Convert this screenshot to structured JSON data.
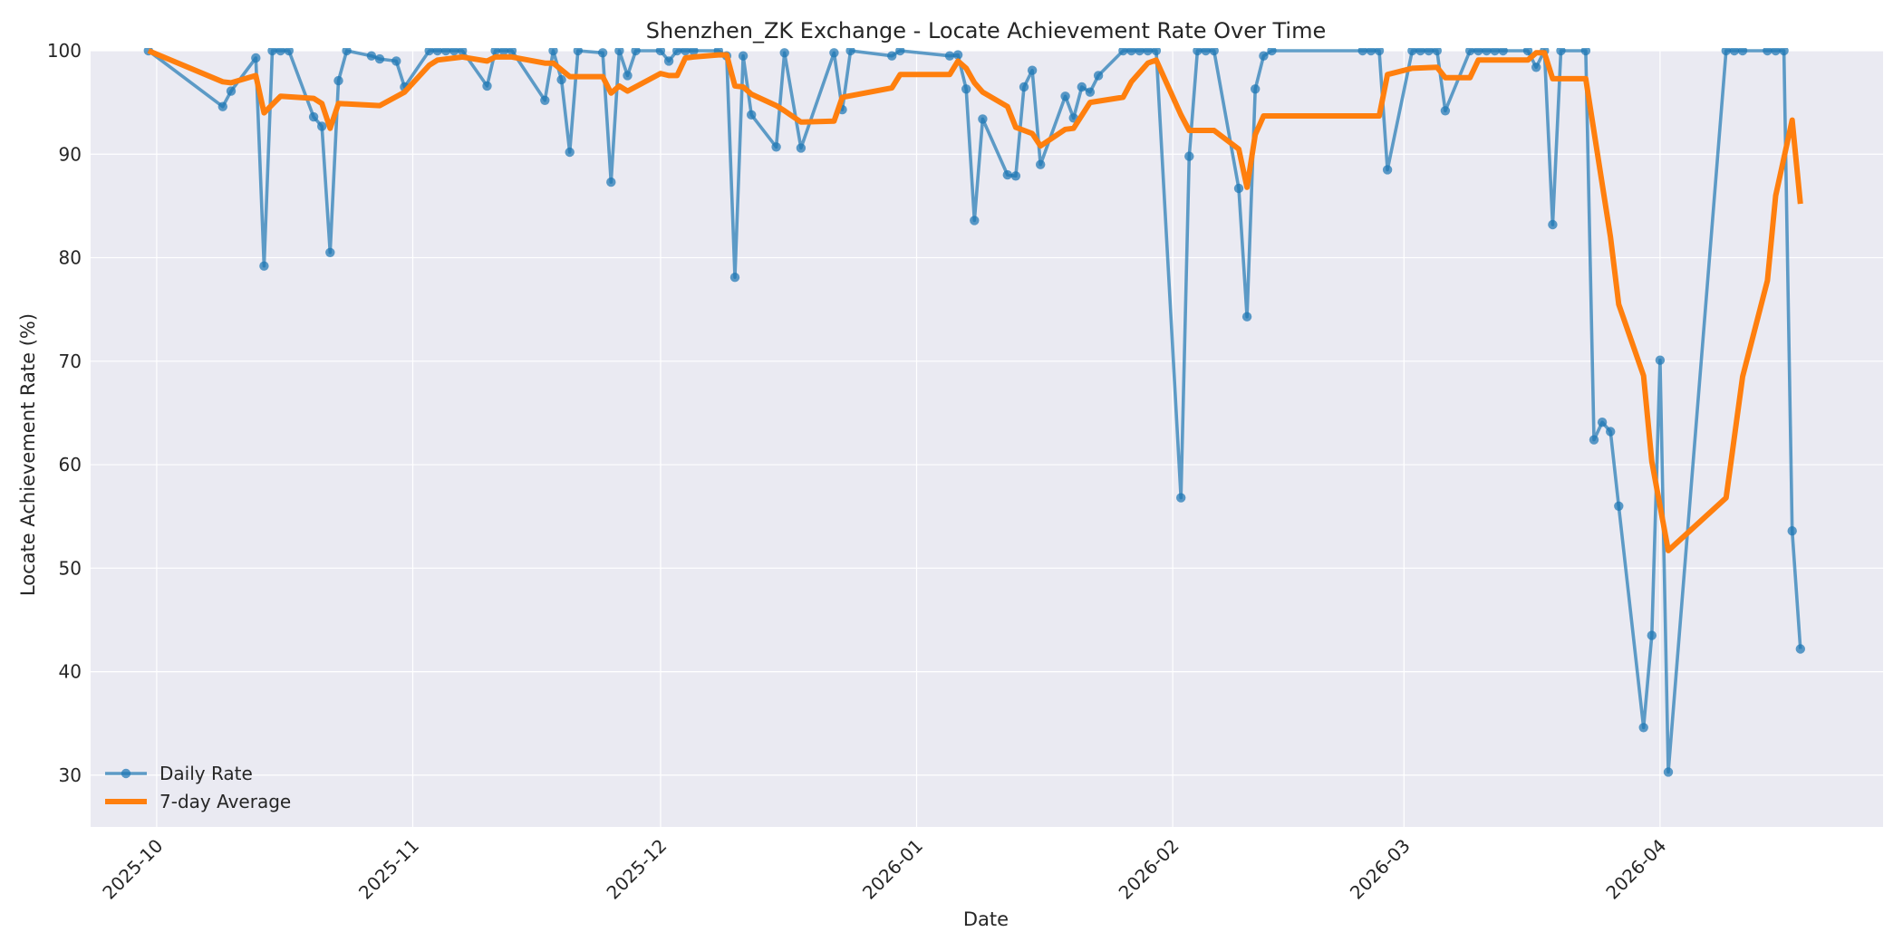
{
  "chart_data": {
    "type": "line",
    "title": "Shenzhen_ZK Exchange - Locate Achievement Rate Over Time",
    "xlabel": "Date",
    "ylabel": "Locate Achievement Rate (%)",
    "xlim": [
      "2025-09-23",
      "2026-04-28"
    ],
    "ylim": [
      25,
      100
    ],
    "x_ticks": [
      "2025-10-01",
      "2025-11-01",
      "2025-12-01",
      "2026-01-01",
      "2026-02-01",
      "2026-03-01",
      "2026-04-01"
    ],
    "x_tick_labels": [
      "2025-10",
      "2025-11",
      "2025-12",
      "2026-01",
      "2026-02",
      "2026-03",
      "2026-04"
    ],
    "y_ticks": [
      30,
      40,
      50,
      60,
      70,
      80,
      90,
      100
    ],
    "grid": true,
    "legend_position": "lower-left",
    "colors": {
      "daily": "#1f77b4",
      "avg": "#ff7f0e",
      "plot_bg": "#eaeaf2",
      "grid": "#ffffff"
    },
    "series": [
      {
        "name": "Daily Rate",
        "style": "line-with-markers",
        "points": [
          [
            "2025-09-30",
            100.0
          ],
          [
            "2025-10-09",
            94.6
          ],
          [
            "2025-10-10",
            96.1
          ],
          [
            "2025-10-13",
            99.3
          ],
          [
            "2025-10-14",
            79.2
          ],
          [
            "2025-10-15",
            100.0
          ],
          [
            "2025-10-16",
            100.0
          ],
          [
            "2025-10-17",
            100.0
          ],
          [
            "2025-10-20",
            93.6
          ],
          [
            "2025-10-21",
            92.7
          ],
          [
            "2025-10-22",
            80.5
          ],
          [
            "2025-10-23",
            97.1
          ],
          [
            "2025-10-24",
            100.0
          ],
          [
            "2025-10-27",
            99.5
          ],
          [
            "2025-10-28",
            99.2
          ],
          [
            "2025-10-30",
            99.0
          ],
          [
            "2025-10-31",
            96.5
          ],
          [
            "2025-11-03",
            100.0
          ],
          [
            "2025-11-04",
            100.0
          ],
          [
            "2025-11-05",
            100.0
          ],
          [
            "2025-11-06",
            100.0
          ],
          [
            "2025-11-07",
            100.0
          ],
          [
            "2025-11-10",
            96.6
          ],
          [
            "2025-11-11",
            100.0
          ],
          [
            "2025-11-12",
            100.0
          ],
          [
            "2025-11-13",
            100.0
          ],
          [
            "2025-11-17",
            95.2
          ],
          [
            "2025-11-18",
            100.0
          ],
          [
            "2025-11-19",
            97.2
          ],
          [
            "2025-11-20",
            90.2
          ],
          [
            "2025-11-21",
            100.0
          ],
          [
            "2025-11-24",
            99.8
          ],
          [
            "2025-11-25",
            87.3
          ],
          [
            "2025-11-26",
            100.0
          ],
          [
            "2025-11-27",
            97.6
          ],
          [
            "2025-11-28",
            100.0
          ],
          [
            "2025-12-01",
            100.0
          ],
          [
            "2025-12-02",
            99.0
          ],
          [
            "2025-12-03",
            100.0
          ],
          [
            "2025-12-04",
            100.0
          ],
          [
            "2025-12-05",
            100.0
          ],
          [
            "2025-12-08",
            100.0
          ],
          [
            "2025-12-09",
            99.5
          ],
          [
            "2025-12-10",
            78.1
          ],
          [
            "2025-12-11",
            99.5
          ],
          [
            "2025-12-12",
            93.8
          ],
          [
            "2025-12-15",
            90.7
          ],
          [
            "2025-12-16",
            99.8
          ],
          [
            "2025-12-18",
            90.6
          ],
          [
            "2025-12-22",
            99.8
          ],
          [
            "2025-12-23",
            94.3
          ],
          [
            "2025-12-24",
            100.0
          ],
          [
            "2025-12-29",
            99.5
          ],
          [
            "2025-12-30",
            100.0
          ],
          [
            "2026-01-05",
            99.5
          ],
          [
            "2026-01-06",
            99.6
          ],
          [
            "2026-01-07",
            96.3
          ],
          [
            "2026-01-08",
            83.6
          ],
          [
            "2026-01-09",
            93.4
          ],
          [
            "2026-01-12",
            88.0
          ],
          [
            "2026-01-13",
            87.9
          ],
          [
            "2026-01-14",
            96.5
          ],
          [
            "2026-01-15",
            98.1
          ],
          [
            "2026-01-16",
            89.0
          ],
          [
            "2026-01-19",
            95.6
          ],
          [
            "2026-01-20",
            93.5
          ],
          [
            "2026-01-21",
            96.5
          ],
          [
            "2026-01-22",
            96.0
          ],
          [
            "2026-01-23",
            97.6
          ],
          [
            "2026-01-26",
            100.0
          ],
          [
            "2026-01-27",
            100.0
          ],
          [
            "2026-01-28",
            100.0
          ],
          [
            "2026-01-29",
            100.0
          ],
          [
            "2026-01-30",
            100.0
          ],
          [
            "2026-02-02",
            56.8
          ],
          [
            "2026-02-03",
            89.8
          ],
          [
            "2026-02-04",
            100.0
          ],
          [
            "2026-02-05",
            100.0
          ],
          [
            "2026-02-06",
            100.0
          ],
          [
            "2026-02-09",
            86.7
          ],
          [
            "2026-02-10",
            74.3
          ],
          [
            "2026-02-11",
            96.3
          ],
          [
            "2026-02-12",
            99.5
          ],
          [
            "2026-02-13",
            100.0
          ],
          [
            "2026-02-24",
            100.0
          ],
          [
            "2026-02-25",
            100.0
          ],
          [
            "2026-02-26",
            100.0
          ],
          [
            "2026-02-27",
            88.5
          ],
          [
            "2026-03-02",
            100.0
          ],
          [
            "2026-03-03",
            100.0
          ],
          [
            "2026-03-04",
            100.0
          ],
          [
            "2026-03-05",
            100.0
          ],
          [
            "2026-03-06",
            94.2
          ],
          [
            "2026-03-09",
            100.0
          ],
          [
            "2026-03-10",
            100.0
          ],
          [
            "2026-03-11",
            100.0
          ],
          [
            "2026-03-12",
            100.0
          ],
          [
            "2026-03-13",
            100.0
          ],
          [
            "2026-03-16",
            100.0
          ],
          [
            "2026-03-17",
            98.4
          ],
          [
            "2026-03-18",
            100.0
          ],
          [
            "2026-03-19",
            83.2
          ],
          [
            "2026-03-20",
            100.0
          ],
          [
            "2026-03-23",
            100.0
          ],
          [
            "2026-03-24",
            62.4
          ],
          [
            "2026-03-25",
            64.1
          ],
          [
            "2026-03-26",
            63.2
          ],
          [
            "2026-03-27",
            56.0
          ],
          [
            "2026-03-30",
            34.6
          ],
          [
            "2026-03-31",
            43.5
          ],
          [
            "2026-04-01",
            70.1
          ],
          [
            "2026-04-02",
            30.3
          ],
          [
            "2026-04-09",
            100.0
          ],
          [
            "2026-04-10",
            100.0
          ],
          [
            "2026-04-11",
            100.0
          ],
          [
            "2026-04-14",
            100.0
          ],
          [
            "2026-04-15",
            100.0
          ],
          [
            "2026-04-16",
            100.0
          ],
          [
            "2026-04-17",
            53.6
          ],
          [
            "2026-04-18",
            42.2
          ]
        ]
      },
      {
        "name": "7-day Average",
        "style": "thick-line",
        "points": [
          [
            "2025-09-30",
            100.0
          ],
          [
            "2025-10-09",
            97.0
          ],
          [
            "2025-10-10",
            96.9
          ],
          [
            "2025-10-13",
            97.6
          ],
          [
            "2025-10-14",
            94.0
          ],
          [
            "2025-10-15",
            94.8
          ],
          [
            "2025-10-16",
            95.6
          ],
          [
            "2025-10-20",
            95.4
          ],
          [
            "2025-10-21",
            94.9
          ],
          [
            "2025-10-22",
            92.5
          ],
          [
            "2025-10-23",
            94.9
          ],
          [
            "2025-10-28",
            94.7
          ],
          [
            "2025-10-31",
            96.0
          ],
          [
            "2025-11-03",
            98.6
          ],
          [
            "2025-11-04",
            99.1
          ],
          [
            "2025-11-07",
            99.4
          ],
          [
            "2025-11-10",
            99.0
          ],
          [
            "2025-11-11",
            99.4
          ],
          [
            "2025-11-13",
            99.4
          ],
          [
            "2025-11-17",
            98.8
          ],
          [
            "2025-11-18",
            98.8
          ],
          [
            "2025-11-20",
            97.5
          ],
          [
            "2025-11-24",
            97.5
          ],
          [
            "2025-11-25",
            95.9
          ],
          [
            "2025-11-26",
            96.6
          ],
          [
            "2025-11-27",
            96.1
          ],
          [
            "2025-12-01",
            97.8
          ],
          [
            "2025-12-02",
            97.6
          ],
          [
            "2025-12-03",
            97.6
          ],
          [
            "2025-12-04",
            99.3
          ],
          [
            "2025-12-05",
            99.4
          ],
          [
            "2025-12-08",
            99.6
          ],
          [
            "2025-12-09",
            99.6
          ],
          [
            "2025-12-10",
            96.6
          ],
          [
            "2025-12-11",
            96.5
          ],
          [
            "2025-12-12",
            95.8
          ],
          [
            "2025-12-15",
            94.7
          ],
          [
            "2025-12-16",
            94.2
          ],
          [
            "2025-12-18",
            93.1
          ],
          [
            "2025-12-22",
            93.2
          ],
          [
            "2025-12-23",
            95.5
          ],
          [
            "2025-12-29",
            96.4
          ],
          [
            "2025-12-30",
            97.7
          ],
          [
            "2026-01-05",
            97.7
          ],
          [
            "2026-01-06",
            99.0
          ],
          [
            "2026-01-07",
            98.3
          ],
          [
            "2026-01-08",
            96.9
          ],
          [
            "2026-01-09",
            96.0
          ],
          [
            "2026-01-12",
            94.6
          ],
          [
            "2026-01-13",
            92.6
          ],
          [
            "2026-01-15",
            92.0
          ],
          [
            "2026-01-16",
            90.8
          ],
          [
            "2026-01-19",
            92.4
          ],
          [
            "2026-01-20",
            92.5
          ],
          [
            "2026-01-22",
            95.0
          ],
          [
            "2026-01-26",
            95.5
          ],
          [
            "2026-01-27",
            97.0
          ],
          [
            "2026-01-29",
            98.8
          ],
          [
            "2026-01-30",
            99.1
          ],
          [
            "2026-02-02",
            93.8
          ],
          [
            "2026-02-03",
            92.3
          ],
          [
            "2026-02-06",
            92.3
          ],
          [
            "2026-02-09",
            90.5
          ],
          [
            "2026-02-10",
            86.8
          ],
          [
            "2026-02-11",
            91.9
          ],
          [
            "2026-02-12",
            93.7
          ],
          [
            "2026-02-13",
            93.7
          ],
          [
            "2026-02-26",
            93.7
          ],
          [
            "2026-02-27",
            97.7
          ],
          [
            "2026-03-02",
            98.3
          ],
          [
            "2026-03-05",
            98.4
          ],
          [
            "2026-03-06",
            97.4
          ],
          [
            "2026-03-09",
            97.4
          ],
          [
            "2026-03-10",
            99.1
          ],
          [
            "2026-03-16",
            99.1
          ],
          [
            "2026-03-17",
            99.8
          ],
          [
            "2026-03-18",
            99.8
          ],
          [
            "2026-03-19",
            97.3
          ],
          [
            "2026-03-23",
            97.3
          ],
          [
            "2026-03-26",
            82.0
          ],
          [
            "2026-03-27",
            75.5
          ],
          [
            "2026-03-30",
            68.6
          ],
          [
            "2026-03-31",
            60.3
          ],
          [
            "2026-04-02",
            51.7
          ],
          [
            "2026-04-09",
            56.8
          ],
          [
            "2026-04-11",
            68.5
          ],
          [
            "2026-04-14",
            77.8
          ],
          [
            "2026-04-15",
            86.0
          ],
          [
            "2026-04-17",
            93.3
          ],
          [
            "2026-04-18",
            85.2
          ]
        ]
      }
    ]
  }
}
